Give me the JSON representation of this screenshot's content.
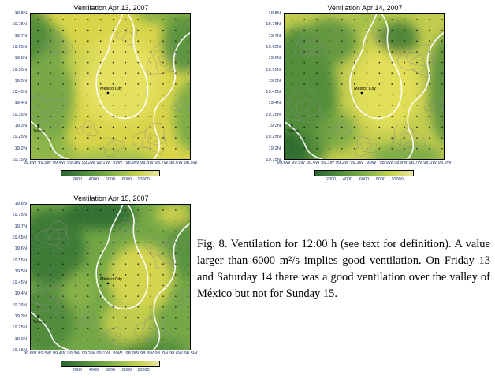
{
  "maps": [
    {
      "title": "Ventilation Apr 13, 2007",
      "city_label": "México City",
      "town_label": "Toluca"
    },
    {
      "title": "Ventilation Apr 14, 2007",
      "city_label": "México City",
      "town_label": "Toluca"
    },
    {
      "title": "Ventilation Apr 15, 2007",
      "city_label": "México City",
      "town_label": "Toluca"
    }
  ],
  "axes": {
    "lat_ticks": [
      "19.8N",
      "19.75N",
      "19.7N",
      "19.65N",
      "19.6N",
      "19.55N",
      "19.5N",
      "19.45N",
      "19.4N",
      "19.35N",
      "19.3N",
      "19.25N",
      "19.2N",
      "19.15N"
    ],
    "lon_ticks": [
      "99.6W",
      "99.5W",
      "99.4W",
      "99.3W",
      "99.2W",
      "99.1W",
      "99W",
      "98.9W",
      "98.8W",
      "98.7W",
      "98.6W",
      "98.5W"
    ]
  },
  "colorbar": {
    "ticks": [
      "2000",
      "4000",
      "6000",
      "8000",
      "10000"
    ],
    "gradient": [
      "#2a6630",
      "#478538",
      "#6ba342",
      "#97bc4a",
      "#c9d452",
      "#e9e6a0"
    ]
  },
  "caption": {
    "label": "Fig. 8.",
    "text": "Ventilation for 12:00 h (see text for definition). A value larger than 6000 m²/s implies good ventilation. On Friday 13 and Saturday 14 there was a good ventilation over the valley of México but not for Sunday 15."
  }
}
